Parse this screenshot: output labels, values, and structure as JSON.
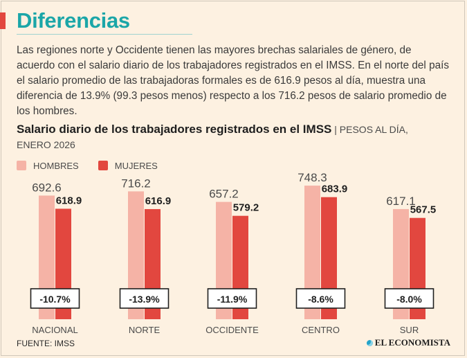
{
  "header": {
    "title": "Diferencias",
    "description": "Las regiones norte y Occidente tienen las mayores brechas salariales de género, de acuerdo con el salario diario de los trabajadores registrados en el IMSS. En el norte del país el salario promedio de las trabajadoras formales es de 616.9 pesos al día, muestra una diferencia de 13.9% (99.3 pesos menos) respecto a los 716.2 pesos de salario promedio de los hombres."
  },
  "footer": {
    "source": "FUENTE: IMSS",
    "brand": "EL ECONOMISTA"
  },
  "colors": {
    "title": "#1ba6a8",
    "accent": "#e2473f",
    "hombres": "#f5b3a6",
    "mujeres": "#e2473f",
    "background": "#fdf1e1"
  },
  "chart_data": {
    "type": "bar",
    "title": "Salario diario de los trabajadores registrados en el IMSS",
    "subtitle": "PESOS AL DÍA, ENERO 2026",
    "categories": [
      "NACIONAL",
      "NORTE",
      "OCCIDENTE",
      "CENTRO",
      "SUR"
    ],
    "series": [
      {
        "name": "HOMBRES",
        "values": [
          692.6,
          716.2,
          657.2,
          748.3,
          617.1
        ],
        "labels": [
          "692.6",
          "716.2",
          "657.2",
          "748.3",
          "617.1"
        ]
      },
      {
        "name": "MUJERES",
        "values": [
          618.9,
          616.9,
          579.2,
          683.9,
          567.5
        ],
        "labels": [
          "618.9",
          "616.9",
          "579.2",
          "683.9",
          "567.5"
        ]
      }
    ],
    "differences": [
      "-10.7%",
      "-13.9%",
      "-11.9%",
      "-8.6%",
      "-8.0%"
    ],
    "legend_position": "top-left",
    "grid": false,
    "xlabel": "",
    "ylabel": ""
  }
}
